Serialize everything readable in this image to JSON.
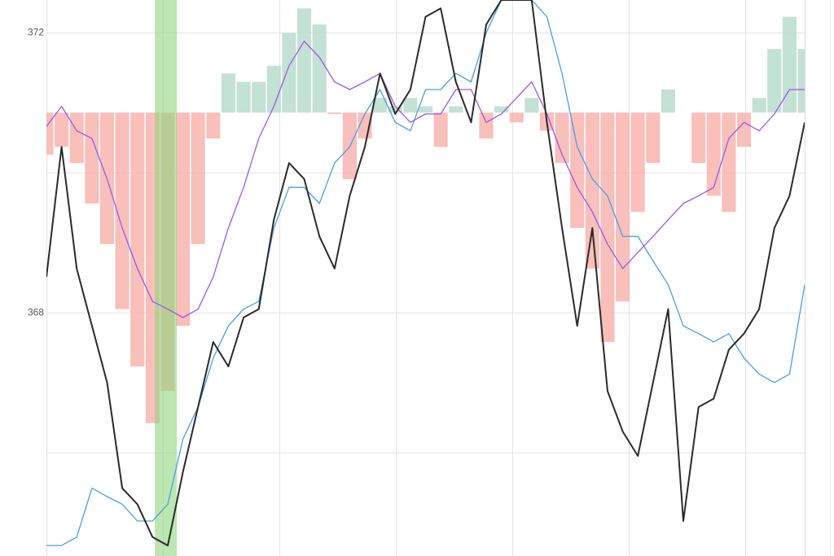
{
  "chart_data": {
    "type": "line",
    "ylim": [
      364.52,
      372.47
    ],
    "yticks": [
      372,
      368
    ],
    "minor_yticks": [
      370,
      366
    ],
    "xlim": [
      0,
      100
    ],
    "xgrid": [
      0,
      15.36,
      30.7,
      46.1,
      61.4,
      76.8,
      92.2
    ],
    "grid": true,
    "x": [
      0,
      2,
      4,
      6,
      8,
      10,
      12,
      14,
      16,
      18,
      20,
      22,
      24,
      26,
      28,
      30,
      32,
      34,
      36,
      38,
      40,
      42,
      44,
      46,
      48,
      50,
      52,
      54,
      56,
      58,
      60,
      62,
      64,
      66,
      68,
      70,
      72,
      74,
      76,
      78,
      80,
      82,
      84,
      86,
      88,
      90,
      92,
      94,
      96,
      98,
      100
    ],
    "highlight": {
      "x": [
        14.3,
        17.2
      ],
      "color": "#8fd67e"
    },
    "bars": {
      "base": 370.86,
      "up_color": "#b9dccd",
      "down_color": "#f8b4ae",
      "values": [
        370.26,
        370.37,
        370.14,
        369.56,
        368.98,
        368.05,
        367.23,
        366.42,
        366.88,
        367.81,
        368.98,
        370.49,
        371.42,
        371.3,
        371.3,
        371.53,
        372.0,
        372.35,
        372.12,
        370.84,
        369.91,
        370.49,
        371.07,
        370.95,
        371.07,
        370.95,
        370.37,
        370.95,
        370.86,
        370.49,
        370.95,
        370.72,
        371.07,
        370.6,
        370.14,
        369.21,
        368.63,
        367.58,
        368.16,
        369.44,
        370.14,
        371.19,
        370.86,
        370.14,
        369.67,
        369.44,
        370.37,
        371.07,
        371.77,
        372.23,
        371.77
      ]
    },
    "series": [
      {
        "color": "#4a9fe0",
        "width": 1.3,
        "values": [
          364.67,
          364.67,
          364.79,
          365.49,
          365.37,
          365.26,
          365.02,
          365.02,
          365.26,
          366.19,
          366.65,
          367.35,
          367.81,
          368.05,
          368.16,
          369.21,
          369.79,
          369.79,
          369.56,
          370.14,
          370.37,
          370.84,
          371.19,
          370.72,
          370.6,
          371.19,
          371.19,
          371.42,
          371.3,
          372.0,
          372.47,
          372.47,
          372.47,
          372.23,
          371.42,
          370.37,
          369.91,
          369.67,
          369.09,
          369.09,
          368.74,
          368.4,
          367.81,
          367.7,
          367.58,
          367.7,
          367.35,
          367.12,
          367.0,
          367.12,
          368.4
        ]
      },
      {
        "color": "#9b59e6",
        "width": 1.3,
        "values": [
          370.66,
          370.95,
          370.6,
          370.49,
          369.91,
          369.21,
          368.63,
          368.16,
          368.05,
          367.93,
          368.05,
          368.51,
          369.21,
          369.79,
          370.49,
          370.95,
          371.53,
          371.88,
          371.65,
          371.3,
          371.19,
          371.3,
          371.42,
          370.95,
          370.72,
          370.84,
          370.84,
          371.19,
          371.19,
          370.72,
          370.84,
          371.07,
          371.3,
          370.84,
          370.26,
          369.79,
          369.44,
          368.98,
          368.63,
          368.86,
          369.09,
          369.33,
          369.56,
          369.67,
          369.79,
          370.49,
          370.72,
          370.6,
          370.84,
          371.19,
          371.19
        ]
      },
      {
        "color": "#2a2a2a",
        "width": 2,
        "values": [
          368.51,
          370.37,
          368.63,
          367.81,
          367.0,
          365.49,
          365.26,
          364.79,
          364.67,
          365.72,
          366.65,
          367.58,
          367.23,
          367.93,
          368.05,
          369.33,
          370.14,
          369.91,
          369.09,
          368.63,
          369.67,
          370.37,
          371.42,
          370.84,
          371.19,
          372.23,
          372.35,
          371.3,
          370.72,
          372.12,
          372.47,
          372.47,
          372.47,
          370.72,
          369.21,
          367.81,
          369.21,
          366.88,
          366.3,
          365.95,
          367.0,
          368.05,
          365.02,
          366.65,
          366.77,
          367.47,
          367.7,
          368.05,
          369.21,
          369.67,
          370.72
        ]
      }
    ]
  }
}
